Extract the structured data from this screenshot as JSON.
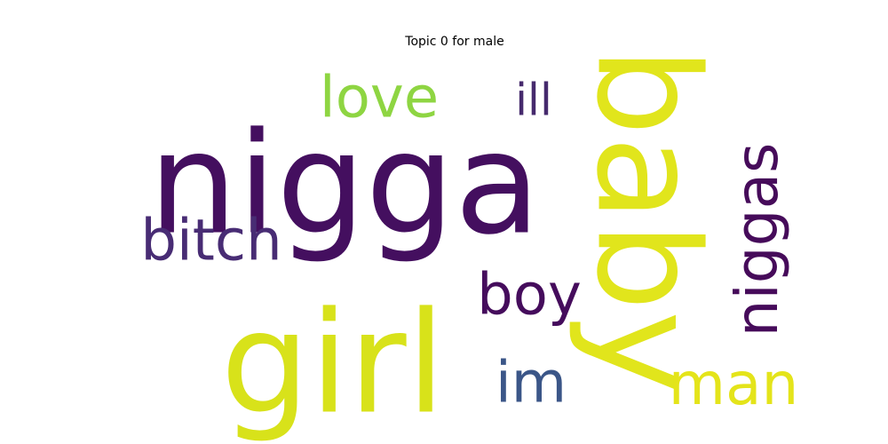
{
  "chart_data": {
    "type": "wordcloud",
    "title": "Topic 0 for male",
    "words": [
      {
        "text": "nigga",
        "color": "#440f5f"
      },
      {
        "text": "baby",
        "color": "#e1e51c"
      },
      {
        "text": "girl",
        "color": "#d8e21a"
      },
      {
        "text": "bitch",
        "color": "#482c74"
      },
      {
        "text": "love",
        "color": "#8ed542"
      },
      {
        "text": "ill",
        "color": "#462a6d"
      },
      {
        "text": "boy",
        "color": "#450c5c"
      },
      {
        "text": "niggas",
        "color": "#460b5a"
      },
      {
        "text": "im",
        "color": "#3b5688"
      },
      {
        "text": "man",
        "color": "#e4e41a"
      }
    ]
  }
}
